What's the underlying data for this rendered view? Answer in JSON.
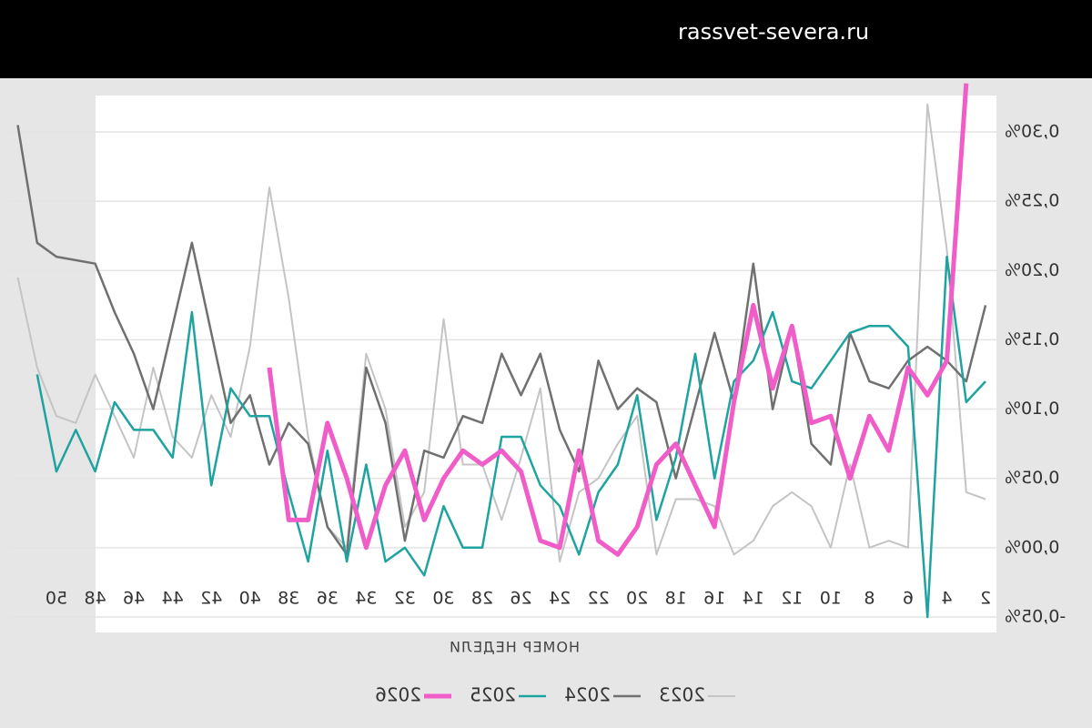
{
  "watermark": "rassvet-severa.ru",
  "chart_data": {
    "type": "line",
    "xlabel": "НОМЕР НЕДЕЛИ",
    "xlim": [
      1,
      52
    ],
    "xticks": [
      2,
      4,
      6,
      8,
      10,
      12,
      14,
      16,
      18,
      20,
      22,
      24,
      26,
      28,
      30,
      32,
      34,
      36,
      38,
      40,
      42,
      44,
      46,
      48,
      50
    ],
    "ylim": [
      -0.06,
      0.34
    ],
    "yticks": [
      {
        "value": -0.05,
        "label": "-0,05%"
      },
      {
        "value": 0,
        "label": "0,00%"
      },
      {
        "value": 0.05,
        "label": "0,05%"
      },
      {
        "value": 0.1,
        "label": "0,10%"
      },
      {
        "value": 0.15,
        "label": "0,15%"
      },
      {
        "value": 0.2,
        "label": "0,20%"
      },
      {
        "value": 0.25,
        "label": "0,25%"
      },
      {
        "value": 0.3,
        "label": "0,30%"
      }
    ],
    "grid": true,
    "mirrored": true,
    "series": [
      {
        "name": "2023",
        "color": "#c4c4c4",
        "x": [
          2,
          3,
          4,
          5,
          6,
          7,
          8,
          9,
          10,
          11,
          12,
          13,
          14,
          15,
          16,
          17,
          18,
          19,
          20,
          21,
          22,
          23,
          24,
          25,
          26,
          27,
          28,
          29,
          30,
          31,
          32,
          33,
          34,
          35,
          36,
          37,
          38,
          39,
          40,
          41,
          42,
          43,
          44,
          45,
          46,
          47,
          48,
          49,
          50,
          51,
          52
        ],
        "values": [
          0.035,
          0.04,
          0.215,
          0.32,
          0,
          0.005,
          0,
          0.06,
          0,
          0.03,
          0.04,
          0.03,
          0.005,
          -0.005,
          0.03,
          0.035,
          0.035,
          -0.005,
          0.095,
          0.075,
          0.05,
          0.04,
          -0.01,
          0.115,
          0.065,
          0.02,
          0.06,
          0.06,
          0.165,
          0.04,
          0.015,
          0.1,
          0.14,
          0,
          0.015,
          0.08,
          0.18,
          0.26,
          0.145,
          0.08,
          0.11,
          0.065,
          0.08,
          0.13,
          0.065,
          0.095,
          0.125,
          0.09,
          0.095,
          0.13,
          0.195
        ]
      },
      {
        "name": "2024",
        "color": "#707070",
        "x": [
          2,
          3,
          4,
          5,
          6,
          7,
          8,
          9,
          10,
          11,
          12,
          13,
          14,
          15,
          16,
          18,
          19,
          20,
          21,
          22,
          23,
          24,
          25,
          26,
          27,
          28,
          29,
          30,
          31,
          32,
          33,
          34,
          35,
          36,
          37,
          38,
          39,
          40,
          41,
          43,
          45,
          46,
          47,
          48,
          50,
          51,
          52
        ],
        "values": [
          0.175,
          0.12,
          0.135,
          0.145,
          0.135,
          0.115,
          0.12,
          0.155,
          0.06,
          0.075,
          0.16,
          0.1,
          0.205,
          0.105,
          0.155,
          0.05,
          0.105,
          0.115,
          0.1,
          0.135,
          0.055,
          0.085,
          0.14,
          0.11,
          0.14,
          0.09,
          0.095,
          0.065,
          0.07,
          0.005,
          0.09,
          0.13,
          -0.005,
          0.015,
          0.075,
          0.09,
          0.06,
          0.11,
          0.09,
          0.22,
          0.1,
          0.14,
          0.17,
          0.205,
          0.21,
          0.22,
          0.305
        ]
      },
      {
        "name": "2025",
        "color": "#1fa3a0",
        "x": [
          2,
          3,
          4,
          5,
          6,
          7,
          8,
          9,
          10,
          11,
          12,
          13,
          14,
          15,
          16,
          17,
          18,
          19,
          20,
          21,
          22,
          23,
          24,
          25,
          26,
          27,
          28,
          29,
          30,
          31,
          32,
          33,
          34,
          35,
          36,
          37,
          38,
          39,
          40,
          41,
          42,
          43,
          44,
          45,
          46,
          47,
          48,
          49,
          50,
          51
        ],
        "values": [
          0.12,
          0.105,
          0.21,
          -0.05,
          0.145,
          0.16,
          0.16,
          0.155,
          0.135,
          0.115,
          0.12,
          0.17,
          0.135,
          0.12,
          0.05,
          0.14,
          0.065,
          0.02,
          0.11,
          0.06,
          0.04,
          -0.005,
          0.03,
          0.045,
          0.08,
          0.08,
          0,
          0,
          0.03,
          -0.02,
          0,
          -0.01,
          0.06,
          -0.01,
          0.07,
          -0.01,
          0.04,
          0.095,
          0.095,
          0.115,
          0.045,
          0.17,
          0.065,
          0.085,
          0.085,
          0.105,
          0.055,
          0.085,
          0.055,
          0.125
        ]
      },
      {
        "name": "2026",
        "color": "#f05cc8",
        "x": [
          3,
          4,
          5,
          6,
          7,
          8,
          9,
          10,
          11,
          12,
          13,
          14,
          15,
          16,
          17,
          18,
          19,
          20,
          21,
          22,
          23,
          24,
          25,
          26,
          27,
          28,
          29,
          30,
          31,
          32,
          33,
          34,
          35,
          36,
          37,
          38,
          39
        ],
        "values": [
          0.335,
          0.135,
          0.11,
          0.13,
          0.07,
          0.095,
          0.05,
          0.095,
          0.09,
          0.16,
          0.115,
          0.175,
          0.105,
          0.015,
          0.045,
          0.075,
          0.06,
          0.015,
          -0.005,
          0.005,
          0.07,
          0,
          0.005,
          0.055,
          0.07,
          0.06,
          0.07,
          0.05,
          0.02,
          0.07,
          0.045,
          0,
          0.05,
          0.09,
          0.02,
          0.02,
          0.13
        ]
      }
    ]
  }
}
